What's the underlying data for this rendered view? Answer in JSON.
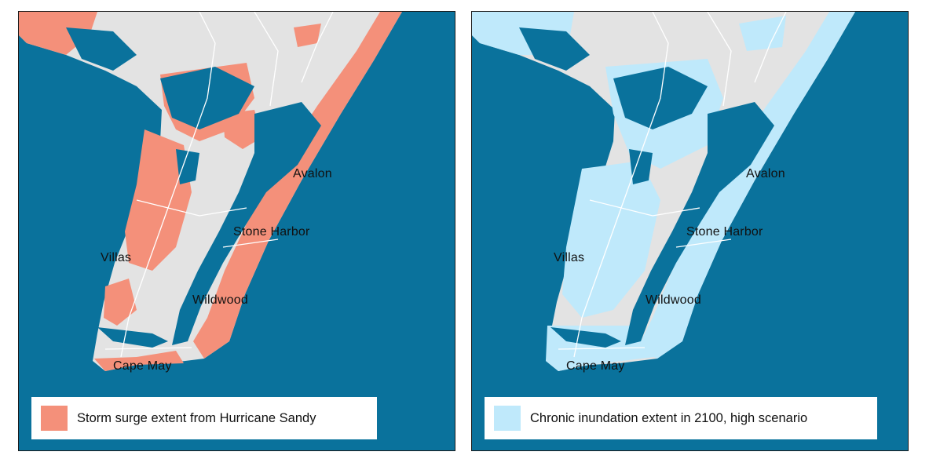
{
  "colors": {
    "water": "#0a729c",
    "land": "#e3e3e3",
    "surge": "#f4907a",
    "inundation": "#bfe9fb",
    "roads": "#ffffff"
  },
  "places": {
    "avalon": "Avalon",
    "stone_harbor": "Stone Harbor",
    "villas": "Villas",
    "wildwood": "Wildwood",
    "cape_may": "Cape May"
  },
  "maps": [
    {
      "legend_label": "Storm surge extent from Hurricane Sandy",
      "legend_color": "#f4907a"
    },
    {
      "legend_label": "Chronic inundation extent in 2100, high scenario",
      "legend_color": "#bfe9fb"
    }
  ]
}
